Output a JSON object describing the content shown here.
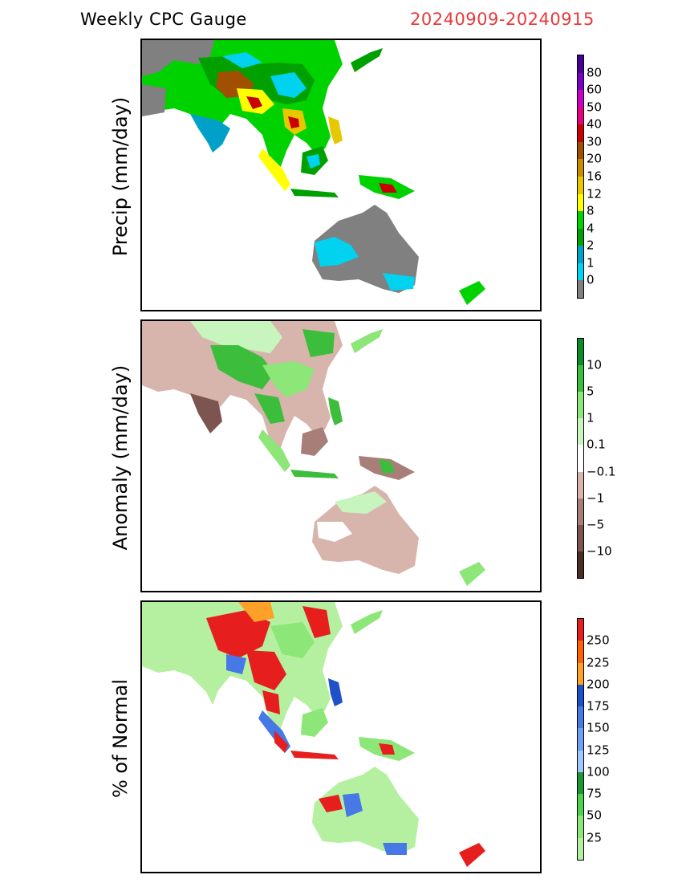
{
  "header": {
    "title": "Weekly CPC Gauge",
    "date_range": "20240909-20240915"
  },
  "panels": [
    {
      "id": "precip",
      "ylabel": "Precip (mm/day)",
      "colors": [
        "#808080",
        "#00d2f0",
        "#00a0c8",
        "#00a000",
        "#00d200",
        "#ffff00",
        "#e6c800",
        "#c88c00",
        "#a05000",
        "#c80000",
        "#e6007d",
        "#c800c8",
        "#7800c8",
        "#460096"
      ],
      "labels": [
        "0",
        "1",
        "2",
        "4",
        "8",
        "12",
        "16",
        "20",
        "30",
        "40",
        "50",
        "60",
        "80"
      ]
    },
    {
      "id": "anomaly",
      "ylabel": "Anomaly (mm/day)",
      "colors": [
        "#4b2d28",
        "#7d5550",
        "#a87f78",
        "#d7b4ac",
        "#ffffff",
        "#c8f5be",
        "#8ce678",
        "#3cbe3c",
        "#0a8c28"
      ],
      "labels": [
        "10",
        "5",
        "1",
        "0.1",
        "−0.1",
        "−1",
        "−5",
        "−10"
      ]
    },
    {
      "id": "percent",
      "ylabel": "% of Normal",
      "colors": [
        "#b4f0a0",
        "#8ce678",
        "#4ed24e",
        "#1e9632",
        "#a0c8ff",
        "#6ea0f5",
        "#4678e6",
        "#1e50c8",
        "#ffa028",
        "#ff6400",
        "#e61e1e"
      ],
      "labels": [
        "25",
        "50",
        "75",
        "100",
        "125",
        "150",
        "175",
        "200",
        "225",
        "250"
      ]
    }
  ]
}
